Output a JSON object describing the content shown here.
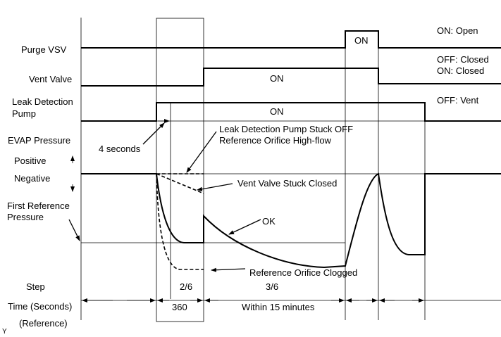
{
  "signals": {
    "purge_vsv": "Purge VSV",
    "vent_valve": "Vent Valve",
    "pump_line1": "Leak Detection",
    "pump_line2": "Pump",
    "evap_pressure": "EVAP Pressure",
    "positive": "Positive",
    "negative": "Negative",
    "first_ref_line1": "First Reference",
    "first_ref_line2": "Pressure",
    "step": "Step",
    "time": "Time (Seconds)",
    "reference": "(Reference)"
  },
  "states": {
    "purge_on": "ON",
    "vent_on": "ON",
    "pump_on": "ON"
  },
  "legend_right": {
    "purge_on": "ON: Open",
    "purge_off": "OFF: Closed",
    "vent_on": "ON: Closed",
    "vent_off": "OFF: Vent"
  },
  "annotations": {
    "four_seconds": "4 seconds",
    "pump_stuck_line1": "Leak Detection Pump Stuck OFF",
    "pump_stuck_line2": "Reference Orifice High-flow",
    "vent_stuck": "Vent Valve Stuck Closed",
    "ok": "OK",
    "orifice_clogged": "Reference Orifice Clogged"
  },
  "steps": {
    "step2": "2/6",
    "step3": "3/6",
    "time2": "360",
    "time3": "Within 15 minutes"
  },
  "corner_mark": "Y"
}
